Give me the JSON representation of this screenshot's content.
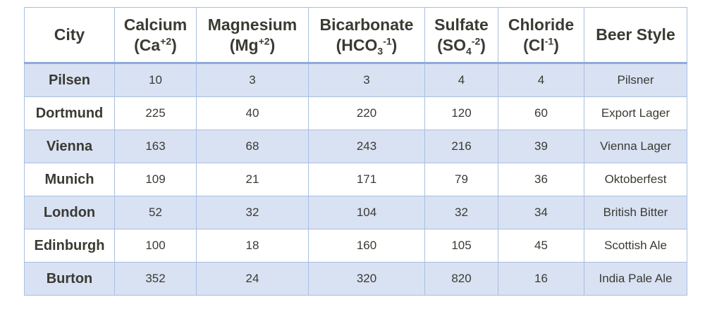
{
  "table": {
    "header": [
      {
        "name": "City"
      },
      {
        "name": "Calcium",
        "symbol": "(Ca",
        "sup": "+2",
        "close": ")"
      },
      {
        "name": "Magnesium",
        "symbol": "(Mg",
        "sup": "+2",
        "close": ")"
      },
      {
        "name": "Bicarbonate",
        "symbol": "(HCO",
        "sub": "3",
        "sup": "-1",
        "close": ")"
      },
      {
        "name": "Sulfate",
        "symbol": "(SO",
        "sub": "4",
        "sup": "-2",
        "close": ")"
      },
      {
        "name": "Chloride",
        "symbol": "(Cl",
        "sup": "-1",
        "close": ")"
      },
      {
        "name": "Beer Style"
      }
    ],
    "rows": [
      [
        "Pilsen",
        10,
        3,
        3,
        4,
        4,
        "Pilsner"
      ],
      [
        "Dortmund",
        225,
        40,
        220,
        120,
        60,
        "Export Lager"
      ],
      [
        "Vienna",
        163,
        68,
        243,
        216,
        39,
        "Vienna Lager"
      ],
      [
        "Munich",
        109,
        21,
        171,
        79,
        36,
        "Oktoberfest"
      ],
      [
        "London",
        52,
        32,
        104,
        32,
        34,
        "British Bitter"
      ],
      [
        "Edinburgh",
        100,
        18,
        160,
        105,
        45,
        "Scottish Ale"
      ],
      [
        "Burton",
        352,
        24,
        320,
        820,
        16,
        "India Pale Ale"
      ]
    ]
  }
}
